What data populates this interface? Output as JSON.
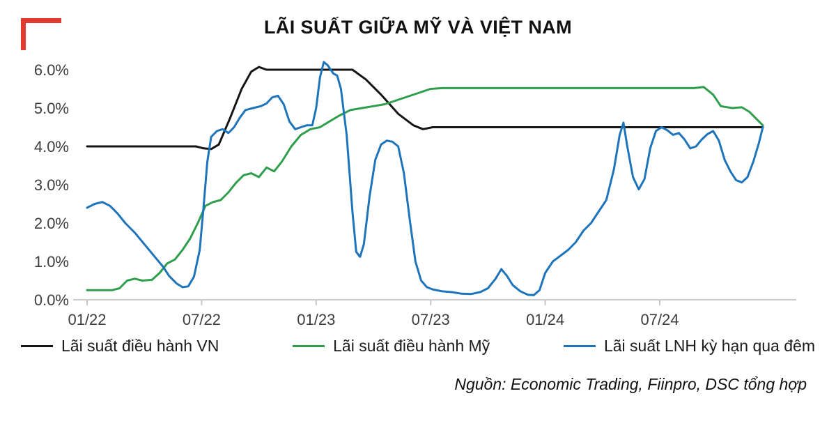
{
  "title": "LÃI SUẤT GIỮA MỸ VÀ VIỆT NAM",
  "source": "Nguồn: Economic Trading, Fiinpro, DSC tổng hợp",
  "legend": [
    {
      "label": "Lãi suất điều hành VN",
      "color": "#151515"
    },
    {
      "label": "Lãi suất điều hành Mỹ",
      "color": "#2e9e4c"
    },
    {
      "label": "Lãi suất LNH kỳ hạn qua đêm",
      "color": "#1e74bb"
    }
  ],
  "chart_data": {
    "type": "line",
    "title": "LÃI SUẤT GIỮA MỸ VÀ VIỆT NAM",
    "xlabel": "",
    "ylabel": "",
    "x_unit": "months since 01/2022",
    "xlim": [
      0,
      35.8
    ],
    "ylim": [
      0,
      6.5
    ],
    "grid": false,
    "legend_position": "bottom",
    "x_ticks": [
      {
        "pos": 0,
        "label": "01/22"
      },
      {
        "pos": 6,
        "label": "07/22"
      },
      {
        "pos": 12,
        "label": "01/23"
      },
      {
        "pos": 18,
        "label": "07/23"
      },
      {
        "pos": 24,
        "label": "01/24"
      },
      {
        "pos": 30,
        "label": "07/24"
      }
    ],
    "y_ticks": [
      {
        "value": 0,
        "label": "0.0%"
      },
      {
        "value": 1,
        "label": "1.0%"
      },
      {
        "value": 2,
        "label": "2.0%"
      },
      {
        "value": 3,
        "label": "3.0%"
      },
      {
        "value": 4,
        "label": "4.0%"
      },
      {
        "value": 5,
        "label": "5.0%"
      },
      {
        "value": 6,
        "label": "6.0%"
      }
    ],
    "series": [
      {
        "name": "Lãi suất điều hành VN",
        "color": "#151515",
        "points": [
          [
            0,
            4.0
          ],
          [
            5.7,
            4.0
          ],
          [
            6.1,
            3.95
          ],
          [
            6.5,
            3.93
          ],
          [
            6.9,
            4.05
          ],
          [
            7.5,
            4.75
          ],
          [
            8.1,
            5.5
          ],
          [
            8.6,
            5.95
          ],
          [
            9.0,
            6.07
          ],
          [
            9.4,
            6.0
          ],
          [
            13.9,
            6.0
          ],
          [
            14.6,
            5.75
          ],
          [
            15.4,
            5.35
          ],
          [
            16.3,
            4.85
          ],
          [
            17.1,
            4.55
          ],
          [
            17.6,
            4.45
          ],
          [
            18.1,
            4.5
          ],
          [
            35.4,
            4.5
          ]
        ]
      },
      {
        "name": "Lãi suất điều hành Mỹ",
        "color": "#2e9e4c",
        "points": [
          [
            0,
            0.25
          ],
          [
            1.3,
            0.25
          ],
          [
            1.7,
            0.3
          ],
          [
            2.1,
            0.5
          ],
          [
            2.5,
            0.55
          ],
          [
            2.9,
            0.5
          ],
          [
            3.4,
            0.52
          ],
          [
            3.8,
            0.7
          ],
          [
            4.2,
            0.95
          ],
          [
            4.6,
            1.05
          ],
          [
            5.0,
            1.3
          ],
          [
            5.4,
            1.6
          ],
          [
            5.8,
            2.0
          ],
          [
            6.2,
            2.45
          ],
          [
            6.6,
            2.55
          ],
          [
            7.0,
            2.6
          ],
          [
            7.4,
            2.8
          ],
          [
            7.8,
            3.05
          ],
          [
            8.2,
            3.25
          ],
          [
            8.6,
            3.3
          ],
          [
            9.0,
            3.2
          ],
          [
            9.4,
            3.45
          ],
          [
            9.8,
            3.35
          ],
          [
            10.2,
            3.6
          ],
          [
            10.7,
            4.0
          ],
          [
            11.2,
            4.3
          ],
          [
            11.7,
            4.45
          ],
          [
            12.2,
            4.5
          ],
          [
            12.7,
            4.65
          ],
          [
            13.2,
            4.8
          ],
          [
            13.8,
            4.95
          ],
          [
            14.4,
            5.0
          ],
          [
            15.0,
            5.05
          ],
          [
            15.6,
            5.1
          ],
          [
            16.2,
            5.2
          ],
          [
            16.8,
            5.3
          ],
          [
            17.4,
            5.4
          ],
          [
            18.0,
            5.5
          ],
          [
            18.6,
            5.52
          ],
          [
            31.8,
            5.52
          ],
          [
            32.3,
            5.55
          ],
          [
            32.8,
            5.35
          ],
          [
            33.2,
            5.05
          ],
          [
            33.8,
            5.0
          ],
          [
            34.3,
            5.02
          ],
          [
            34.7,
            4.9
          ],
          [
            35.0,
            4.75
          ],
          [
            35.4,
            4.55
          ]
        ]
      },
      {
        "name": "Lãi suất LNH kỳ hạn qua đêm",
        "color": "#1e74bb",
        "points": [
          [
            0,
            2.4
          ],
          [
            0.4,
            2.5
          ],
          [
            0.8,
            2.55
          ],
          [
            1.2,
            2.45
          ],
          [
            1.6,
            2.25
          ],
          [
            2.0,
            2.0
          ],
          [
            2.5,
            1.75
          ],
          [
            3.0,
            1.45
          ],
          [
            3.5,
            1.15
          ],
          [
            4.0,
            0.85
          ],
          [
            4.3,
            0.62
          ],
          [
            4.7,
            0.42
          ],
          [
            5.0,
            0.33
          ],
          [
            5.3,
            0.35
          ],
          [
            5.6,
            0.6
          ],
          [
            5.9,
            1.3
          ],
          [
            6.1,
            2.4
          ],
          [
            6.3,
            3.6
          ],
          [
            6.5,
            4.25
          ],
          [
            6.8,
            4.4
          ],
          [
            7.1,
            4.45
          ],
          [
            7.4,
            4.35
          ],
          [
            7.7,
            4.5
          ],
          [
            8.0,
            4.75
          ],
          [
            8.3,
            4.95
          ],
          [
            8.7,
            5.0
          ],
          [
            9.1,
            5.05
          ],
          [
            9.4,
            5.12
          ],
          [
            9.7,
            5.28
          ],
          [
            10.0,
            5.32
          ],
          [
            10.3,
            5.1
          ],
          [
            10.6,
            4.65
          ],
          [
            10.9,
            4.45
          ],
          [
            11.2,
            4.5
          ],
          [
            11.5,
            4.55
          ],
          [
            11.8,
            4.55
          ],
          [
            12.0,
            5.0
          ],
          [
            12.2,
            5.8
          ],
          [
            12.4,
            6.2
          ],
          [
            12.6,
            6.12
          ],
          [
            12.9,
            5.9
          ],
          [
            13.1,
            5.85
          ],
          [
            13.3,
            5.5
          ],
          [
            13.6,
            4.3
          ],
          [
            13.9,
            2.3
          ],
          [
            14.1,
            1.25
          ],
          [
            14.3,
            1.12
          ],
          [
            14.5,
            1.45
          ],
          [
            14.8,
            2.7
          ],
          [
            15.1,
            3.65
          ],
          [
            15.4,
            4.05
          ],
          [
            15.7,
            4.15
          ],
          [
            16.0,
            4.12
          ],
          [
            16.3,
            4.0
          ],
          [
            16.6,
            3.3
          ],
          [
            16.9,
            2.1
          ],
          [
            17.2,
            1.0
          ],
          [
            17.5,
            0.5
          ],
          [
            17.8,
            0.33
          ],
          [
            18.1,
            0.27
          ],
          [
            18.6,
            0.22
          ],
          [
            19.1,
            0.2
          ],
          [
            19.6,
            0.16
          ],
          [
            20.1,
            0.15
          ],
          [
            20.6,
            0.2
          ],
          [
            21.0,
            0.3
          ],
          [
            21.4,
            0.55
          ],
          [
            21.7,
            0.8
          ],
          [
            22.0,
            0.62
          ],
          [
            22.3,
            0.38
          ],
          [
            22.7,
            0.22
          ],
          [
            23.1,
            0.13
          ],
          [
            23.4,
            0.12
          ],
          [
            23.7,
            0.25
          ],
          [
            24.0,
            0.7
          ],
          [
            24.4,
            1.0
          ],
          [
            24.8,
            1.15
          ],
          [
            25.2,
            1.3
          ],
          [
            25.6,
            1.5
          ],
          [
            26.0,
            1.8
          ],
          [
            26.4,
            2.0
          ],
          [
            26.8,
            2.3
          ],
          [
            27.2,
            2.6
          ],
          [
            27.6,
            3.4
          ],
          [
            27.9,
            4.3
          ],
          [
            28.1,
            4.62
          ],
          [
            28.3,
            4.0
          ],
          [
            28.6,
            3.2
          ],
          [
            28.9,
            2.88
          ],
          [
            29.2,
            3.15
          ],
          [
            29.5,
            3.95
          ],
          [
            29.8,
            4.4
          ],
          [
            30.1,
            4.5
          ],
          [
            30.4,
            4.42
          ],
          [
            30.7,
            4.3
          ],
          [
            31.0,
            4.35
          ],
          [
            31.3,
            4.18
          ],
          [
            31.6,
            3.95
          ],
          [
            31.9,
            4.0
          ],
          [
            32.2,
            4.18
          ],
          [
            32.5,
            4.32
          ],
          [
            32.8,
            4.4
          ],
          [
            33.1,
            4.15
          ],
          [
            33.4,
            3.65
          ],
          [
            33.7,
            3.35
          ],
          [
            34.0,
            3.12
          ],
          [
            34.3,
            3.06
          ],
          [
            34.6,
            3.2
          ],
          [
            34.9,
            3.6
          ],
          [
            35.2,
            4.1
          ],
          [
            35.4,
            4.5
          ]
        ]
      }
    ]
  }
}
